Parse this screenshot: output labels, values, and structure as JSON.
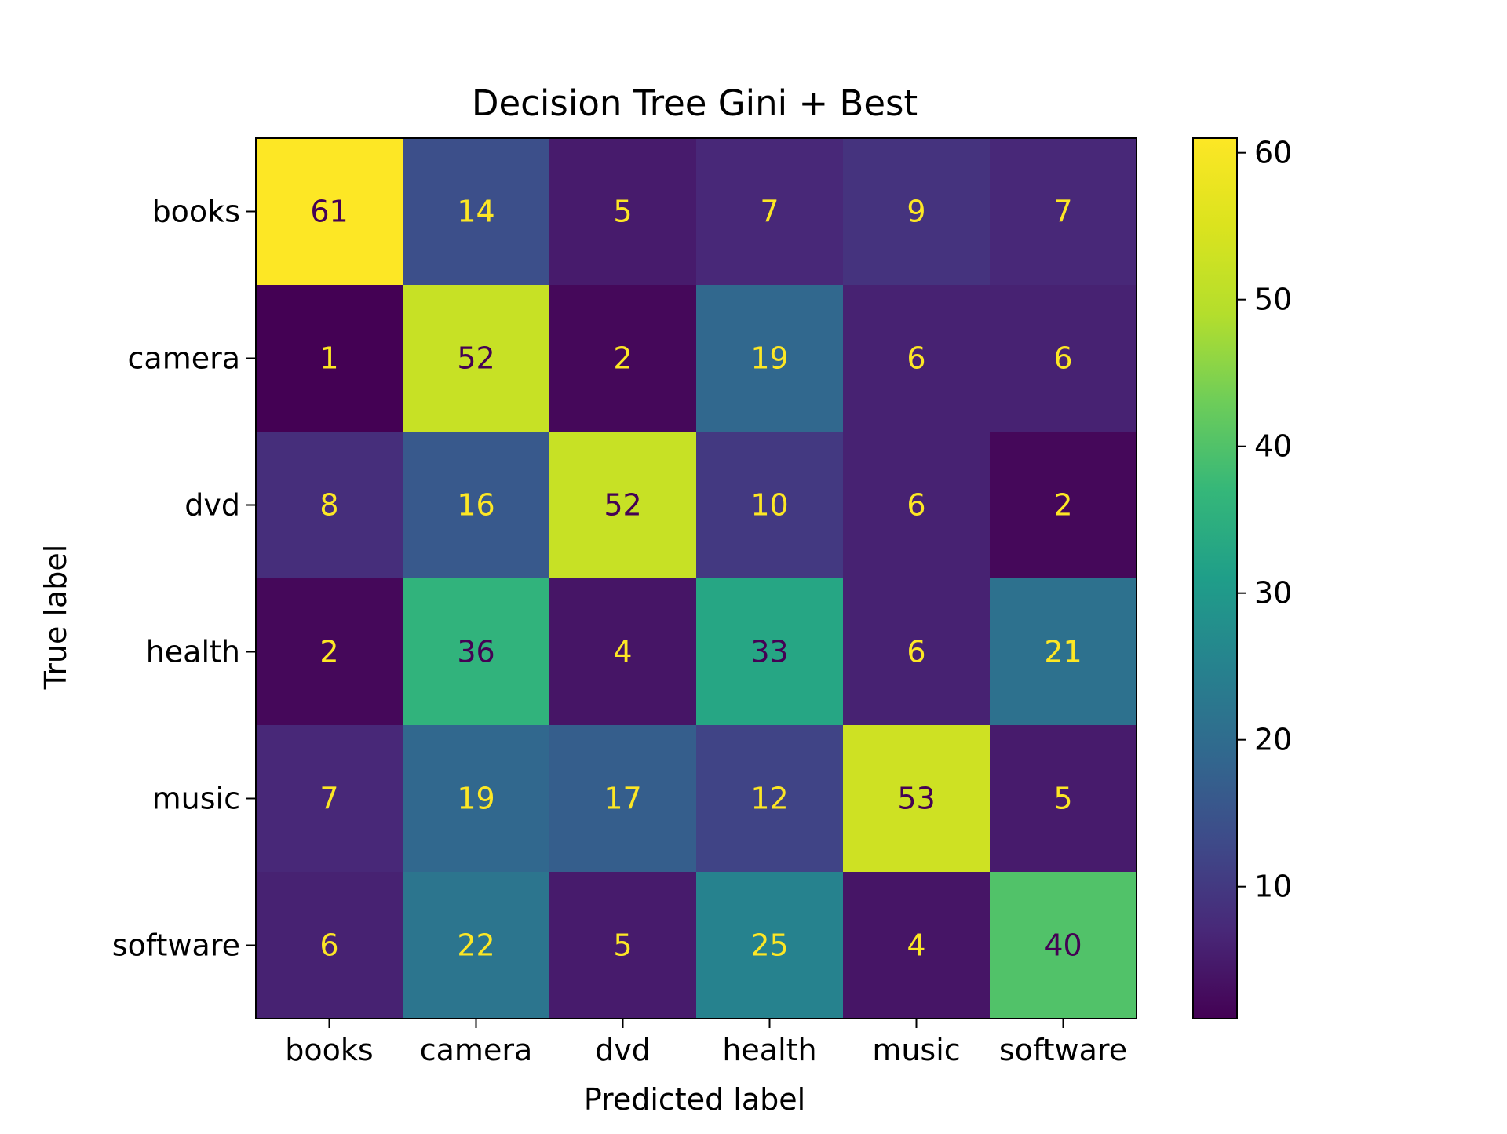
{
  "chart_data": {
    "type": "heatmap",
    "title": "Decision Tree Gini + Best",
    "xlabel": "Predicted label",
    "ylabel": "True label",
    "x_categories": [
      "books",
      "camera",
      "dvd",
      "health",
      "music",
      "software"
    ],
    "y_categories": [
      "books",
      "camera",
      "dvd",
      "health",
      "music",
      "software"
    ],
    "values": [
      [
        61,
        14,
        5,
        7,
        9,
        7
      ],
      [
        1,
        52,
        2,
        19,
        6,
        6
      ],
      [
        8,
        16,
        52,
        10,
        6,
        2
      ],
      [
        2,
        36,
        4,
        33,
        6,
        21
      ],
      [
        7,
        19,
        17,
        12,
        53,
        5
      ],
      [
        6,
        22,
        5,
        25,
        4,
        40
      ]
    ],
    "colormap": "viridis",
    "colorbar": {
      "range": [
        1,
        61
      ],
      "ticks": [
        10,
        20,
        30,
        40,
        50,
        60
      ]
    },
    "text_colors": {
      "light": "#fde725",
      "dark": "#440154"
    },
    "grid": false
  }
}
